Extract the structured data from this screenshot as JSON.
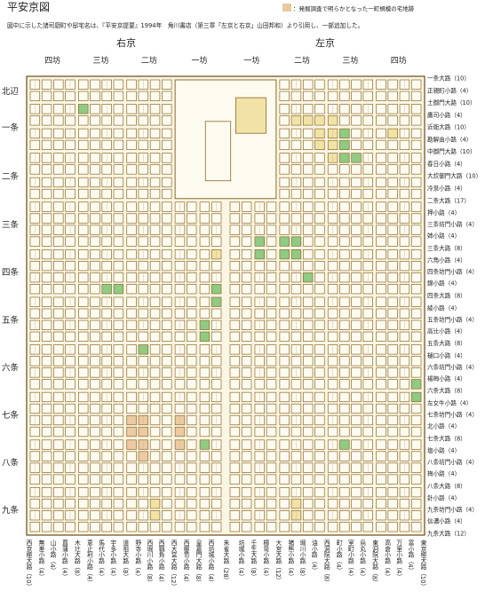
{
  "header": {
    "title": "平安京図",
    "legend": "：発掘調査で明らかとなった一町規模の宅地跡",
    "note": "図中に示した諸司厨町や邸宅名は、『平安京提要』1994年　角川書店（第三章「左京と右京」山田邦和）より引用し、一部追加した。"
  },
  "wards": [
    "右京",
    "左京"
  ],
  "bo": [
    "四坊",
    "三坊",
    "二坊",
    "一坊",
    "一坊",
    "二坊",
    "三坊",
    "四坊"
  ],
  "jo": [
    "北辺",
    "一条",
    "二条",
    "三条",
    "四条",
    "五条",
    "六条",
    "七条",
    "八条",
    "九条"
  ],
  "streets_ew": [
    "一条大路（10）",
    "正親町小路（4）",
    "土御門大路（10）",
    "鷹司小路（4）",
    "近衛大路（10）",
    "勘解由小路（4）",
    "中御門大路（10）",
    "春日小路（4）",
    "大炊御門大路（10）",
    "冷泉小路（4）",
    "二条大路（17）",
    "押小路（4）",
    "三条坊門小路（4）",
    "姉小路（4）",
    "三条大路（8）",
    "六角小路（4）",
    "四条坊門小路（4）",
    "錦小路（4）",
    "四条大路（8）",
    "綾小路（4）",
    "五条坊門小路（4）",
    "高辻小路（4）",
    "五条大路（8）",
    "樋口小路（4）",
    "六条坊門小路（4）",
    "楊梅小路（4）",
    "六条大路（8）",
    "左女牛小路（4）",
    "七条坊門小路（4）",
    "北小路（4）",
    "七条大路（8）",
    "塩小路（4）",
    "八条坊門小路（4）",
    "梅小路（4）",
    "八条大路（8）",
    "針小路（4）",
    "九条坊門小路（4）",
    "信濃小路（4）",
    "九条大路（12）"
  ],
  "streets_ns": [
    "西京極大路（10）",
    "無差小路（4）",
    "山小路（4）",
    "菖蒲小路（4）",
    "木辻大路（8）",
    "恵止利小路（4）",
    "馬代小路（4）",
    "宇多小路（4）",
    "道祖大路（8）",
    "野寺小路（4）",
    "西堀川小路（8）",
    "西靱負小路（4）",
    "西大宮大路（12）",
    "西櫛笥小路（4）",
    "皇嘉門大路（8）",
    "西坊城小路（4）",
    "朱雀大路（28）",
    "坊城小路（4）",
    "壬生大路（8）",
    "櫛笥小路（4）",
    "大宮大路（12）",
    "猪熊小路（4）",
    "堀川小路（8）",
    "油小路（4）",
    "西洞院大路（8）",
    "町小路（4）",
    "室町小路（4）",
    "烏丸小路（4）",
    "東洞院大路（8）",
    "高倉小路（4）",
    "万里小路（4）",
    "富小路（4）",
    "東京極大路（10）"
  ]
}
